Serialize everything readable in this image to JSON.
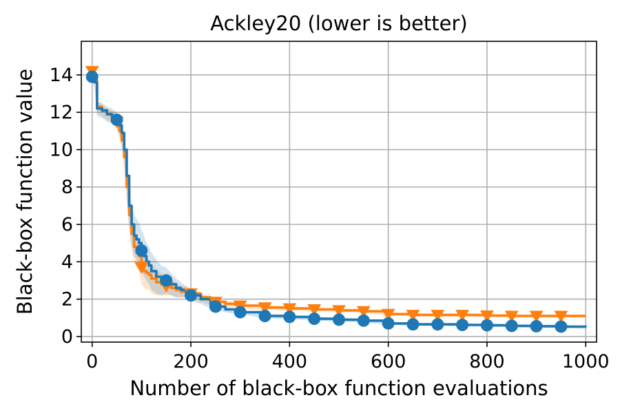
{
  "chart_data": {
    "type": "line",
    "title": "Ackley20 (lower is better)",
    "xlabel": "Number of black-box function evaluations",
    "ylabel": "Black-box function value",
    "xlim": [
      -22,
      1022
    ],
    "ylim": [
      -0.3,
      15.8
    ],
    "xticks": [
      0,
      200,
      400,
      600,
      800,
      1000
    ],
    "yticks": [
      0,
      2,
      4,
      6,
      8,
      10,
      12,
      14
    ],
    "grid": true,
    "colors": {
      "series_orange": "#ff7f0e",
      "series_blue": "#1f77b4"
    },
    "series": [
      {
        "marker": "triangle-down",
        "color": "#ff7f0e",
        "x": [
          0,
          5,
          10,
          20,
          30,
          40,
          50,
          55,
          60,
          65,
          70,
          75,
          80,
          85,
          90,
          95,
          100,
          105,
          110,
          115,
          120,
          130,
          140,
          150,
          160,
          170,
          180,
          190,
          200,
          220,
          240,
          250,
          270,
          290,
          300,
          350,
          400,
          450,
          500,
          550,
          600,
          650,
          700,
          750,
          800,
          850,
          900,
          950,
          1000
        ],
        "y": [
          14.2,
          13.7,
          12.3,
          12.1,
          11.9,
          11.8,
          11.5,
          11.0,
          10.5,
          9.6,
          8.0,
          6.5,
          5.5,
          4.8,
          4.5,
          4.3,
          3.7,
          3.5,
          3.4,
          3.3,
          3.1,
          2.9,
          2.8,
          2.7,
          2.6,
          2.5,
          2.4,
          2.4,
          2.3,
          2.1,
          1.9,
          1.85,
          1.75,
          1.7,
          1.65,
          1.55,
          1.5,
          1.45,
          1.4,
          1.35,
          1.2,
          1.15,
          1.15,
          1.15,
          1.12,
          1.1,
          1.1,
          1.1,
          1.1
        ],
        "band": [
          0.1,
          0.2,
          0.3,
          0.3,
          0.3,
          0.3,
          0.3,
          0.4,
          0.5,
          0.6,
          0.8,
          0.9,
          0.9,
          0.8,
          0.8,
          0.8,
          0.9,
          0.9,
          0.9,
          0.8,
          0.8,
          0.7,
          0.6,
          0.5,
          0.4,
          0.4,
          0.3,
          0.3,
          0.3,
          0.25,
          0.2,
          0.2,
          0.15,
          0.15,
          0.15,
          0.12,
          0.12,
          0.1,
          0.1,
          0.1,
          0.08,
          0.08,
          0.08,
          0.08,
          0.08,
          0.08,
          0.08,
          0.08,
          0.08
        ],
        "marker_x": [
          0,
          50,
          100,
          150,
          200,
          250,
          300,
          350,
          400,
          450,
          500,
          550,
          600,
          650,
          700,
          750,
          800,
          850,
          900,
          950
        ]
      },
      {
        "marker": "circle",
        "color": "#1f77b4",
        "x": [
          0,
          5,
          10,
          20,
          30,
          40,
          50,
          55,
          60,
          65,
          70,
          75,
          80,
          85,
          90,
          95,
          100,
          105,
          110,
          115,
          120,
          130,
          140,
          150,
          160,
          170,
          180,
          190,
          200,
          220,
          240,
          250,
          270,
          290,
          300,
          350,
          400,
          450,
          500,
          550,
          600,
          650,
          700,
          750,
          800,
          850,
          900,
          950,
          1000
        ],
        "y": [
          13.9,
          13.6,
          12.2,
          12.1,
          11.9,
          11.8,
          11.6,
          11.3,
          10.9,
          10.0,
          8.6,
          7.0,
          6.0,
          5.4,
          5.2,
          5.0,
          4.6,
          4.3,
          4.0,
          3.8,
          3.5,
          3.2,
          3.0,
          3.0,
          2.8,
          2.6,
          2.5,
          2.4,
          2.2,
          2.0,
          1.7,
          1.6,
          1.45,
          1.35,
          1.3,
          1.1,
          1.05,
          0.95,
          0.9,
          0.85,
          0.7,
          0.65,
          0.65,
          0.62,
          0.6,
          0.57,
          0.55,
          0.53,
          0.5
        ],
        "band": [
          0.1,
          0.3,
          0.4,
          0.4,
          0.4,
          0.4,
          0.4,
          0.5,
          0.6,
          0.7,
          0.9,
          1.0,
          1.1,
          1.1,
          1.1,
          1.1,
          1.1,
          1.1,
          1.0,
          1.0,
          1.0,
          0.9,
          0.8,
          0.7,
          0.6,
          0.5,
          0.4,
          0.3,
          0.3,
          0.25,
          0.2,
          0.2,
          0.15,
          0.15,
          0.12,
          0.12,
          0.12,
          0.1,
          0.1,
          0.1,
          0.08,
          0.08,
          0.08,
          0.08,
          0.08,
          0.08,
          0.08,
          0.08,
          0.08
        ],
        "marker_x": [
          0,
          50,
          100,
          150,
          200,
          250,
          300,
          350,
          400,
          450,
          500,
          550,
          600,
          650,
          700,
          750,
          800,
          850,
          900,
          950
        ]
      }
    ]
  }
}
